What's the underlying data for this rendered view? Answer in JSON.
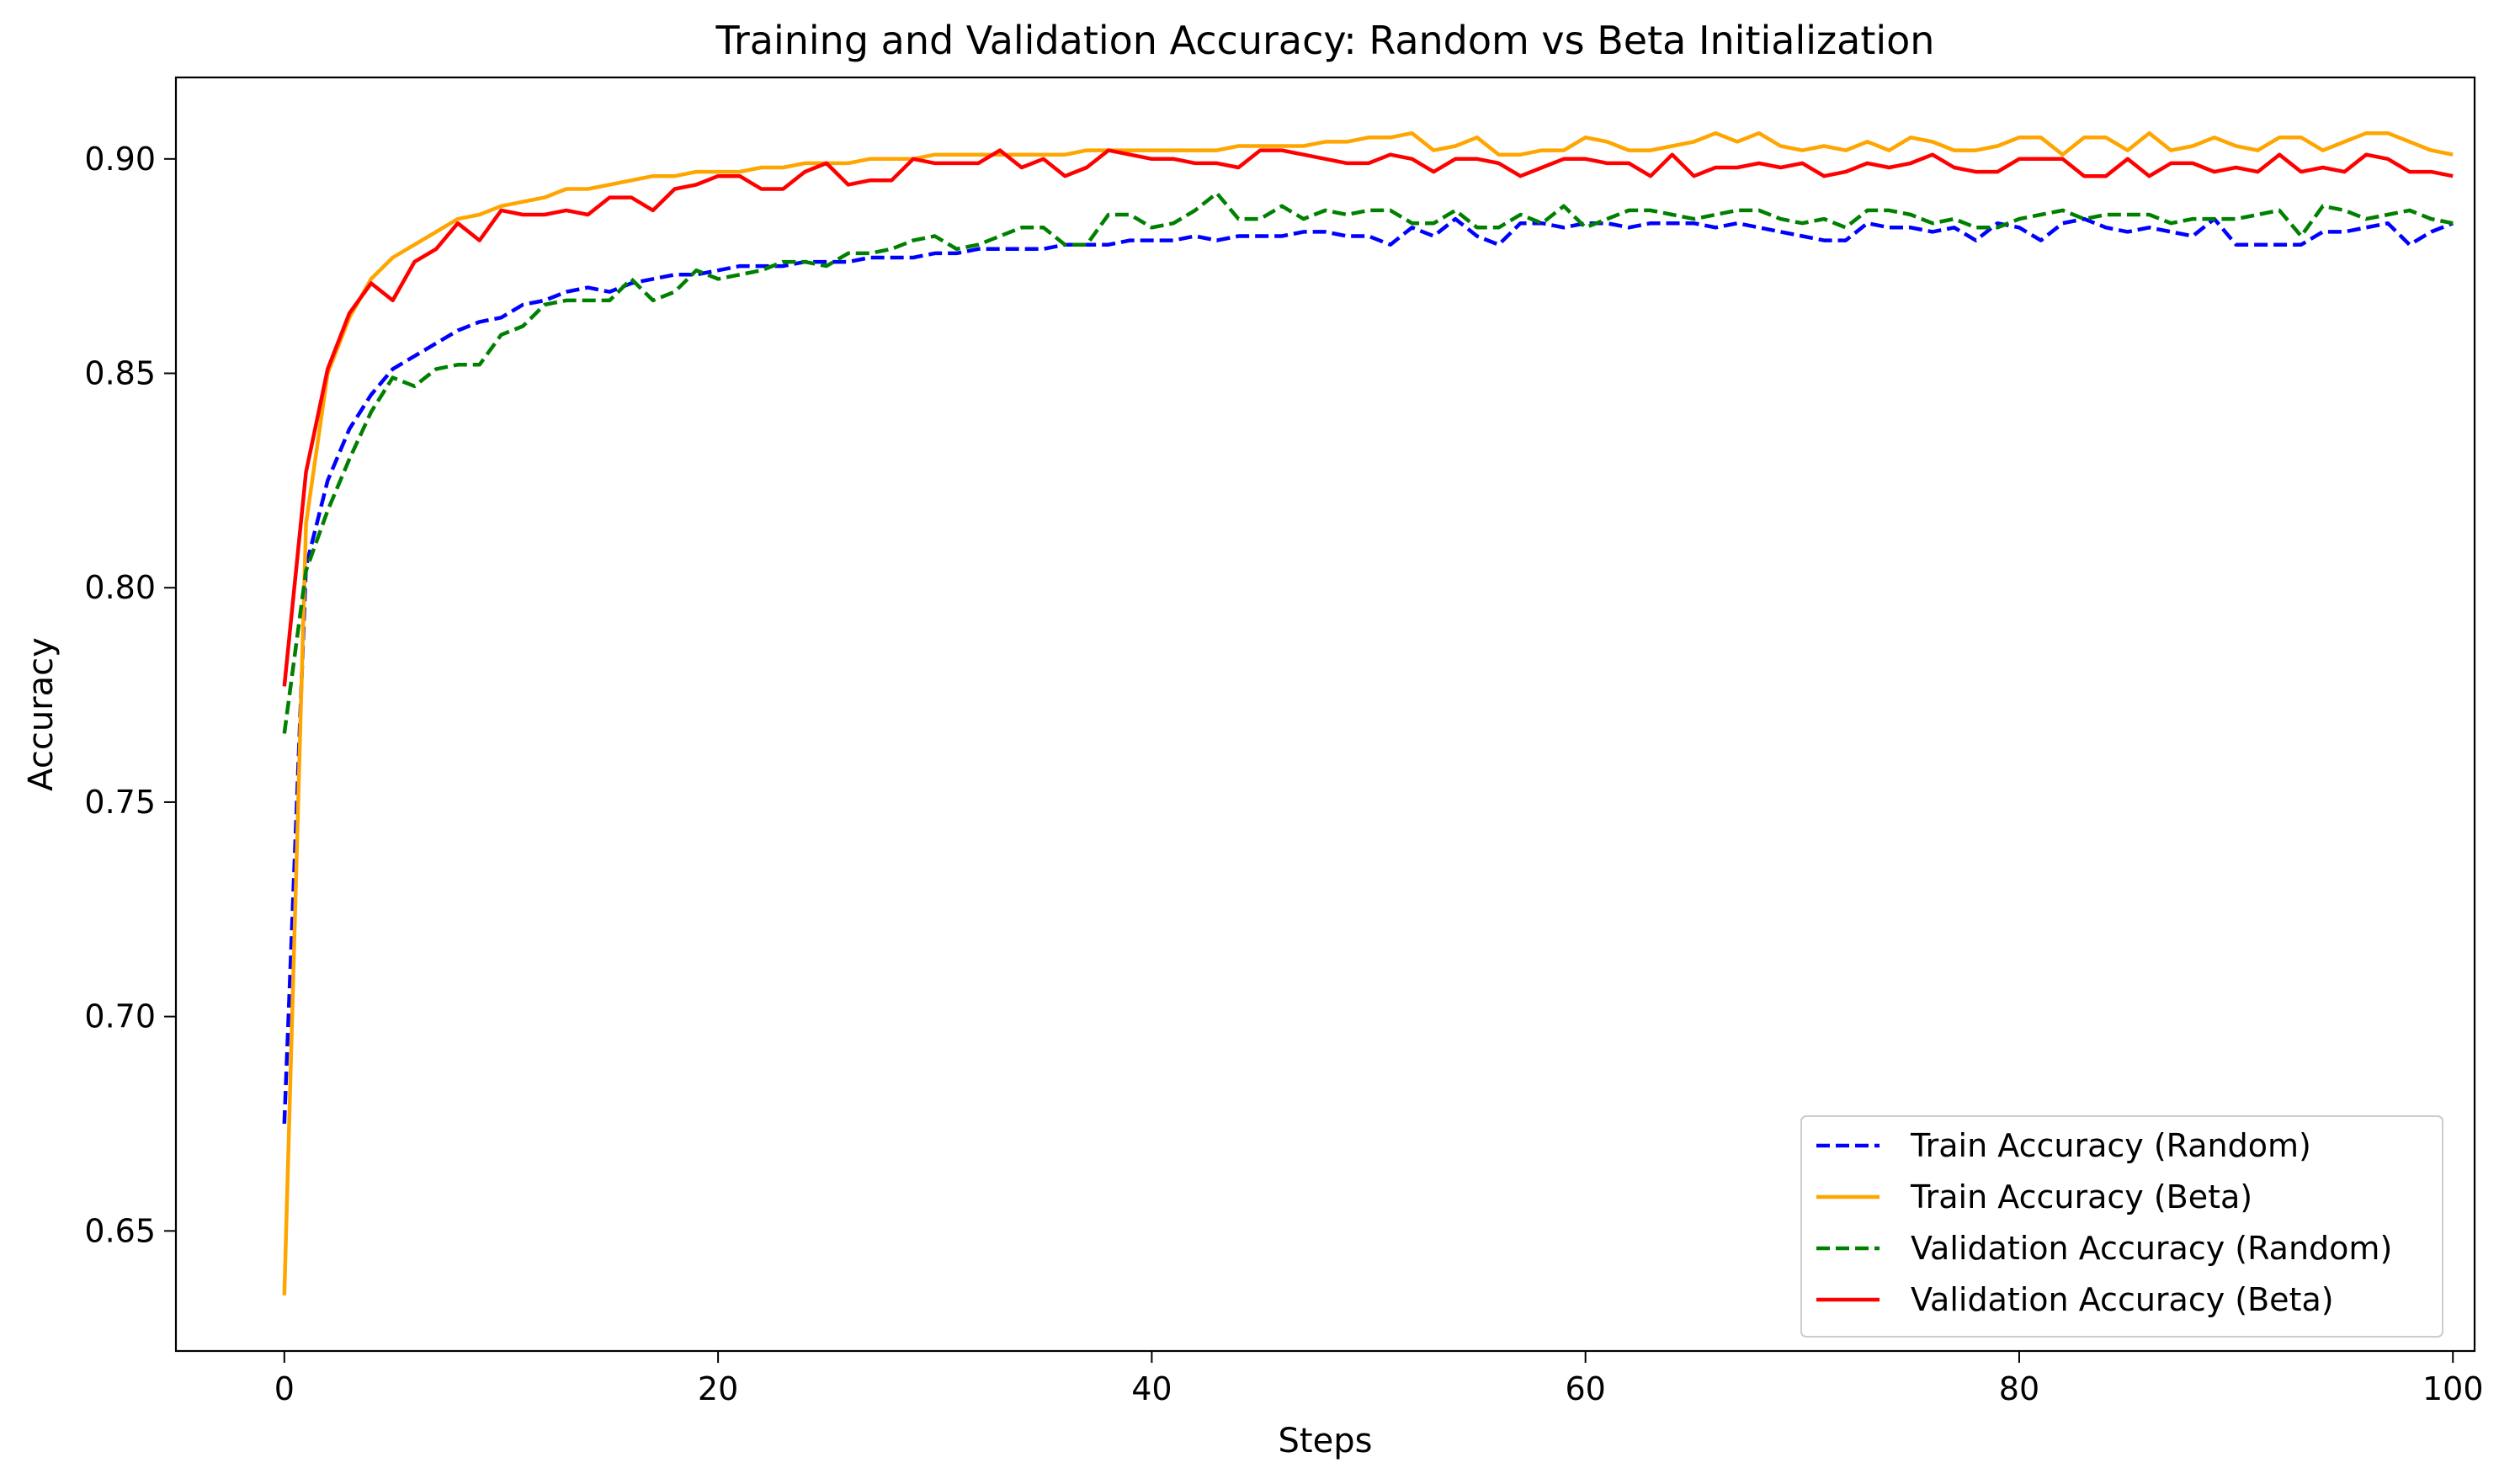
{
  "chart_data": {
    "type": "line",
    "title": "Training and Validation Accuracy: Random vs Beta Initialization",
    "xlabel": "Steps",
    "ylabel": "Accuracy",
    "xlim": [
      -5,
      101
    ],
    "ylim": [
      0.622,
      0.919
    ],
    "xticks": [
      0,
      20,
      40,
      60,
      80,
      100
    ],
    "xtick_labels": [
      "0",
      "20",
      "40",
      "60",
      "80",
      "100"
    ],
    "yticks": [
      0.65,
      0.7,
      0.75,
      0.8,
      0.85,
      0.9
    ],
    "ytick_labels": [
      "0.65",
      "0.70",
      "0.75",
      "0.80",
      "0.85",
      "0.90"
    ],
    "grid": false,
    "legend_position": "bottom-right",
    "x": [
      0,
      1,
      2,
      3,
      4,
      5,
      6,
      7,
      8,
      9,
      10,
      11,
      12,
      13,
      14,
      15,
      16,
      17,
      18,
      19,
      20,
      21,
      22,
      23,
      24,
      25,
      26,
      27,
      28,
      29,
      30,
      31,
      32,
      33,
      34,
      35,
      36,
      37,
      38,
      39,
      40,
      41,
      42,
      43,
      44,
      45,
      46,
      47,
      48,
      49,
      50,
      51,
      52,
      53,
      54,
      55,
      56,
      57,
      58,
      59,
      60,
      61,
      62,
      63,
      64,
      65,
      66,
      67,
      68,
      69,
      70,
      71,
      72,
      73,
      74,
      75,
      76,
      77,
      78,
      79,
      80,
      81,
      82,
      83,
      84,
      85,
      86,
      87,
      88,
      89,
      90,
      91,
      92,
      93,
      94,
      95,
      96,
      97,
      98,
      99,
      100
    ],
    "series": [
      {
        "name": "Train Accuracy (Random)",
        "color": "#0000ff",
        "dash": true,
        "values": [
          0.675,
          0.805,
          0.825,
          0.837,
          0.845,
          0.851,
          0.854,
          0.857,
          0.86,
          0.862,
          0.863,
          0.866,
          0.867,
          0.869,
          0.87,
          0.869,
          0.871,
          0.872,
          0.873,
          0.873,
          0.874,
          0.875,
          0.875,
          0.875,
          0.876,
          0.876,
          0.876,
          0.877,
          0.877,
          0.877,
          0.878,
          0.878,
          0.879,
          0.879,
          0.879,
          0.879,
          0.88,
          0.88,
          0.88,
          0.881,
          0.881,
          0.881,
          0.882,
          0.881,
          0.882,
          0.882,
          0.882,
          0.883,
          0.883,
          0.882,
          0.882,
          0.88,
          0.884,
          0.882,
          0.886,
          0.882,
          0.88,
          0.885,
          0.885,
          0.884,
          0.885,
          0.885,
          0.884,
          0.885,
          0.885,
          0.885,
          0.884,
          0.885,
          0.884,
          0.883,
          0.882,
          0.881,
          0.881,
          0.885,
          0.884,
          0.884,
          0.883,
          0.884,
          0.881,
          0.885,
          0.884,
          0.881,
          0.885,
          0.886,
          0.884,
          0.883,
          0.884,
          0.883,
          0.882,
          0.886,
          0.88,
          0.88,
          0.88,
          0.88,
          0.883,
          0.883,
          0.884,
          0.885,
          0.88,
          0.883,
          0.885
        ]
      },
      {
        "name": "Train Accuracy (Beta)",
        "color": "#ffa500",
        "dash": false,
        "values": [
          0.635,
          0.815,
          0.85,
          0.863,
          0.872,
          0.877,
          0.88,
          0.883,
          0.886,
          0.887,
          0.889,
          0.89,
          0.891,
          0.893,
          0.893,
          0.894,
          0.895,
          0.896,
          0.896,
          0.897,
          0.897,
          0.897,
          0.898,
          0.898,
          0.899,
          0.899,
          0.899,
          0.9,
          0.9,
          0.9,
          0.901,
          0.901,
          0.901,
          0.901,
          0.901,
          0.901,
          0.901,
          0.902,
          0.902,
          0.902,
          0.902,
          0.902,
          0.902,
          0.902,
          0.903,
          0.903,
          0.903,
          0.903,
          0.904,
          0.904,
          0.905,
          0.905,
          0.906,
          0.902,
          0.903,
          0.905,
          0.901,
          0.901,
          0.902,
          0.902,
          0.905,
          0.904,
          0.902,
          0.902,
          0.903,
          0.904,
          0.906,
          0.904,
          0.906,
          0.903,
          0.902,
          0.903,
          0.902,
          0.904,
          0.902,
          0.905,
          0.904,
          0.902,
          0.902,
          0.903,
          0.905,
          0.905,
          0.901,
          0.905,
          0.905,
          0.902,
          0.906,
          0.902,
          0.903,
          0.905,
          0.903,
          0.902,
          0.905,
          0.905,
          0.902,
          0.904,
          0.906,
          0.906,
          0.904,
          0.902,
          0.901
        ]
      },
      {
        "name": "Validation Accuracy (Random)",
        "color": "#008000",
        "dash": true,
        "values": [
          0.766,
          0.804,
          0.818,
          0.83,
          0.841,
          0.849,
          0.847,
          0.851,
          0.852,
          0.852,
          0.859,
          0.861,
          0.866,
          0.867,
          0.867,
          0.867,
          0.872,
          0.867,
          0.869,
          0.874,
          0.872,
          0.873,
          0.874,
          0.876,
          0.876,
          0.875,
          0.878,
          0.878,
          0.879,
          0.881,
          0.882,
          0.879,
          0.88,
          0.882,
          0.884,
          0.884,
          0.88,
          0.88,
          0.887,
          0.887,
          0.884,
          0.885,
          0.888,
          0.892,
          0.886,
          0.886,
          0.889,
          0.886,
          0.888,
          0.887,
          0.888,
          0.888,
          0.885,
          0.885,
          0.888,
          0.884,
          0.884,
          0.887,
          0.885,
          0.889,
          0.884,
          0.886,
          0.888,
          0.888,
          0.887,
          0.886,
          0.887,
          0.888,
          0.888,
          0.886,
          0.885,
          0.886,
          0.884,
          0.888,
          0.888,
          0.887,
          0.885,
          0.886,
          0.884,
          0.884,
          0.886,
          0.887,
          0.888,
          0.886,
          0.887,
          0.887,
          0.887,
          0.885,
          0.886,
          0.886,
          0.886,
          0.887,
          0.888,
          0.882,
          0.889,
          0.888,
          0.886,
          0.887,
          0.888,
          0.886,
          0.885
        ]
      },
      {
        "name": "Validation Accuracy (Beta)",
        "color": "#ff0000",
        "dash": false,
        "values": [
          0.777,
          0.827,
          0.851,
          0.864,
          0.871,
          0.867,
          0.876,
          0.879,
          0.885,
          0.881,
          0.888,
          0.887,
          0.887,
          0.888,
          0.887,
          0.891,
          0.891,
          0.888,
          0.893,
          0.894,
          0.896,
          0.896,
          0.893,
          0.893,
          0.897,
          0.899,
          0.894,
          0.895,
          0.895,
          0.9,
          0.899,
          0.899,
          0.899,
          0.902,
          0.898,
          0.9,
          0.896,
          0.898,
          0.902,
          0.901,
          0.9,
          0.9,
          0.899,
          0.899,
          0.898,
          0.902,
          0.902,
          0.901,
          0.9,
          0.899,
          0.899,
          0.901,
          0.9,
          0.897,
          0.9,
          0.9,
          0.899,
          0.896,
          0.898,
          0.9,
          0.9,
          0.899,
          0.899,
          0.896,
          0.901,
          0.896,
          0.898,
          0.898,
          0.899,
          0.898,
          0.899,
          0.896,
          0.897,
          0.899,
          0.898,
          0.899,
          0.901,
          0.898,
          0.897,
          0.897,
          0.9,
          0.9,
          0.9,
          0.896,
          0.896,
          0.9,
          0.896,
          0.899,
          0.899,
          0.897,
          0.898,
          0.897,
          0.901,
          0.897,
          0.898,
          0.897,
          0.901,
          0.9,
          0.897,
          0.897,
          0.896
        ]
      }
    ]
  }
}
